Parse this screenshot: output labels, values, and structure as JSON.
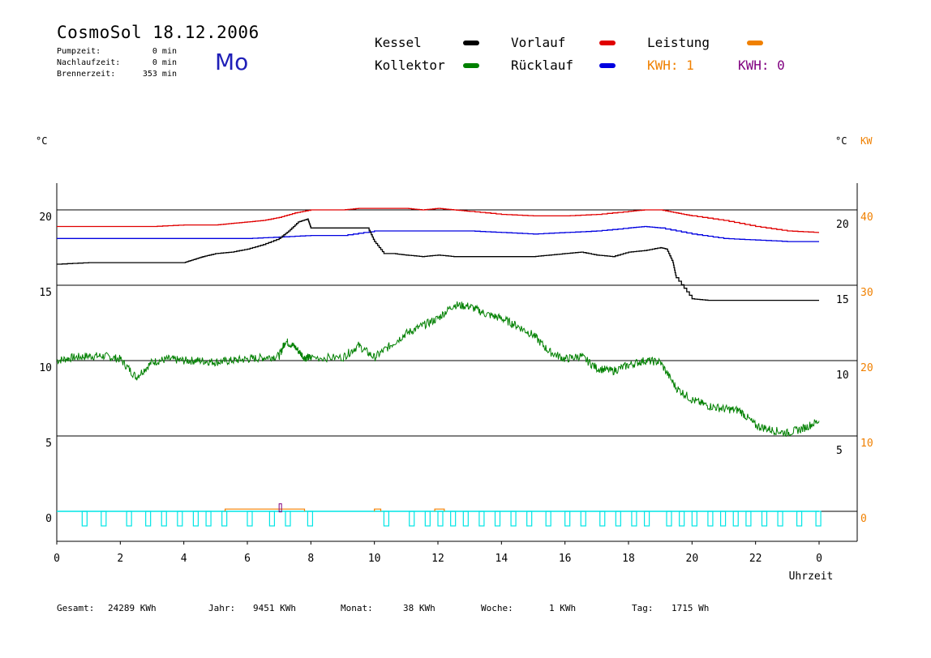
{
  "header": {
    "title": "CosmoSol 18.12.2006",
    "weekday": "Mo",
    "stats": [
      {
        "label": "Pumpzeit:",
        "value": "0 min"
      },
      {
        "label": "Nachlaufzeit:",
        "value": "0 min"
      },
      {
        "label": "Brennerzeit:",
        "value": "353 min"
      }
    ]
  },
  "legend": {
    "kessel": {
      "label": "Kessel",
      "color": "#000000"
    },
    "kollektor": {
      "label": "Kollektor",
      "color": "#008000"
    },
    "vorlauf": {
      "label": "Vorlauf",
      "color": "#e00000"
    },
    "ruecklauf": {
      "label": "Rücklauf",
      "color": "#0000e0"
    },
    "leistung": {
      "label": "Leistung",
      "color": "#f08000"
    },
    "kwh_orange": {
      "label": "KWH: 1",
      "color": "#f08000"
    },
    "kwh_purple": {
      "label": "KWH: 0",
      "color": "#800080"
    }
  },
  "axis_units": {
    "left": "°C",
    "right_celsius": "°C",
    "right_kw": "KW"
  },
  "footer": [
    {
      "label": "Gesamt:",
      "value": "24289 KWh"
    },
    {
      "label": "Jahr:",
      "value": "9451 KWh"
    },
    {
      "label": "Monat:",
      "value": "38 KWh"
    },
    {
      "label": "Woche:",
      "value": "1 KWh"
    },
    {
      "label": "Tag:",
      "value": "1715 Wh"
    }
  ],
  "chart_data": {
    "type": "line",
    "xlabel": "Uhrzeit",
    "x_ticks": [
      "0",
      "2",
      "4",
      "6",
      "8",
      "10",
      "12",
      "14",
      "16",
      "18",
      "20",
      "22",
      "0"
    ],
    "xlim": [
      0,
      24
    ],
    "y_left_ticks": [
      "0",
      "5",
      "10",
      "15",
      "20"
    ],
    "y_right_celsius_ticks": [
      "5",
      "10",
      "15",
      "20"
    ],
    "y_right_kw_ticks": [
      "0",
      "10",
      "20",
      "30",
      "40"
    ],
    "ylim": [
      -2,
      22
    ],
    "grid": "horizontal",
    "series": [
      {
        "name": "Vorlauf",
        "color": "#e00000",
        "x": [
          0,
          1,
          2,
          3,
          4,
          5,
          5.5,
          6,
          6.5,
          7,
          7.5,
          8,
          9,
          9.5,
          10,
          10.5,
          11,
          11.5,
          12,
          12.5,
          13,
          14,
          15,
          16,
          17,
          18,
          18.5,
          19,
          19.5,
          20,
          21,
          22,
          23,
          24
        ],
        "y": [
          18.9,
          18.9,
          18.9,
          18.9,
          19.0,
          19.0,
          19.1,
          19.2,
          19.3,
          19.5,
          19.8,
          20.0,
          20.0,
          20.1,
          20.1,
          20.1,
          20.1,
          20.0,
          20.1,
          20.0,
          19.9,
          19.7,
          19.6,
          19.6,
          19.7,
          19.9,
          20.0,
          20.0,
          19.8,
          19.6,
          19.3,
          18.9,
          18.6,
          18.5
        ]
      },
      {
        "name": "Rücklauf",
        "color": "#0000e0",
        "x": [
          0,
          2,
          4,
          6,
          7,
          8,
          9,
          10,
          11,
          12,
          13,
          14,
          15,
          16,
          17,
          18,
          18.5,
          19,
          20,
          21,
          22,
          23,
          24
        ],
        "y": [
          18.1,
          18.1,
          18.1,
          18.1,
          18.2,
          18.3,
          18.3,
          18.6,
          18.6,
          18.6,
          18.6,
          18.5,
          18.4,
          18.5,
          18.6,
          18.8,
          18.9,
          18.8,
          18.4,
          18.1,
          18.0,
          17.9,
          17.9
        ],
        "y_note": "Rücklauf rises after 10 h"
      },
      {
        "name": "Kessel",
        "color": "#000000",
        "x": [
          0,
          1,
          2,
          3,
          4,
          4.3,
          4.6,
          5,
          5.5,
          6,
          6.5,
          7,
          7.3,
          7.6,
          7.9,
          8,
          9,
          9.8,
          10,
          10.3,
          10.6,
          11,
          11.5,
          12,
          12.5,
          13,
          14,
          15,
          15.5,
          16,
          16.5,
          17,
          17.5,
          18,
          18.5,
          19,
          19.2,
          19.4,
          19.5,
          20,
          20.5,
          21,
          22,
          23,
          24
        ],
        "y": [
          16.4,
          16.5,
          16.5,
          16.5,
          16.5,
          16.7,
          16.9,
          17.1,
          17.2,
          17.4,
          17.7,
          18.1,
          18.6,
          19.2,
          19.4,
          18.8,
          18.8,
          18.8,
          17.9,
          17.1,
          17.1,
          17.0,
          16.9,
          17.0,
          16.9,
          16.9,
          16.9,
          16.9,
          17.0,
          17.1,
          17.2,
          17.0,
          16.9,
          17.2,
          17.3,
          17.5,
          17.4,
          16.5,
          15.5,
          14.1,
          14.0,
          14.0,
          14.0,
          14.0,
          14.0
        ]
      },
      {
        "name": "Kollektor",
        "color": "#008000",
        "x": [
          0,
          0.5,
          1,
          1.5,
          2,
          2.5,
          3,
          3.5,
          4,
          4.5,
          5,
          5.5,
          6,
          6.5,
          7,
          7.2,
          7.5,
          7.8,
          8,
          9,
          9.5,
          10,
          10.5,
          11,
          11.5,
          12,
          12.5,
          13,
          13.5,
          14,
          14.5,
          15,
          15.5,
          16,
          16.5,
          17,
          17.5,
          18,
          18.5,
          19,
          19.5,
          20,
          20.5,
          21,
          21.5,
          22,
          22.5,
          23,
          23.5,
          24
        ],
        "y": [
          10.0,
          10.2,
          10.3,
          10.3,
          10.1,
          8.9,
          9.9,
          10.1,
          10.0,
          10.0,
          9.9,
          10.0,
          10.1,
          10.2,
          10.3,
          11.3,
          10.9,
          10.2,
          10.2,
          10.2,
          11.0,
          10.2,
          11.0,
          11.8,
          12.3,
          12.8,
          13.7,
          13.6,
          13.1,
          12.8,
          12.3,
          11.7,
          10.6,
          10.1,
          10.3,
          9.5,
          9.3,
          9.7,
          10.0,
          9.9,
          8.2,
          7.4,
          7.0,
          6.8,
          6.7,
          5.7,
          5.4,
          5.2,
          5.5,
          6.0
        ]
      }
    ],
    "annotations": [
      "KWH: 1",
      "KWH: 0"
    ]
  }
}
